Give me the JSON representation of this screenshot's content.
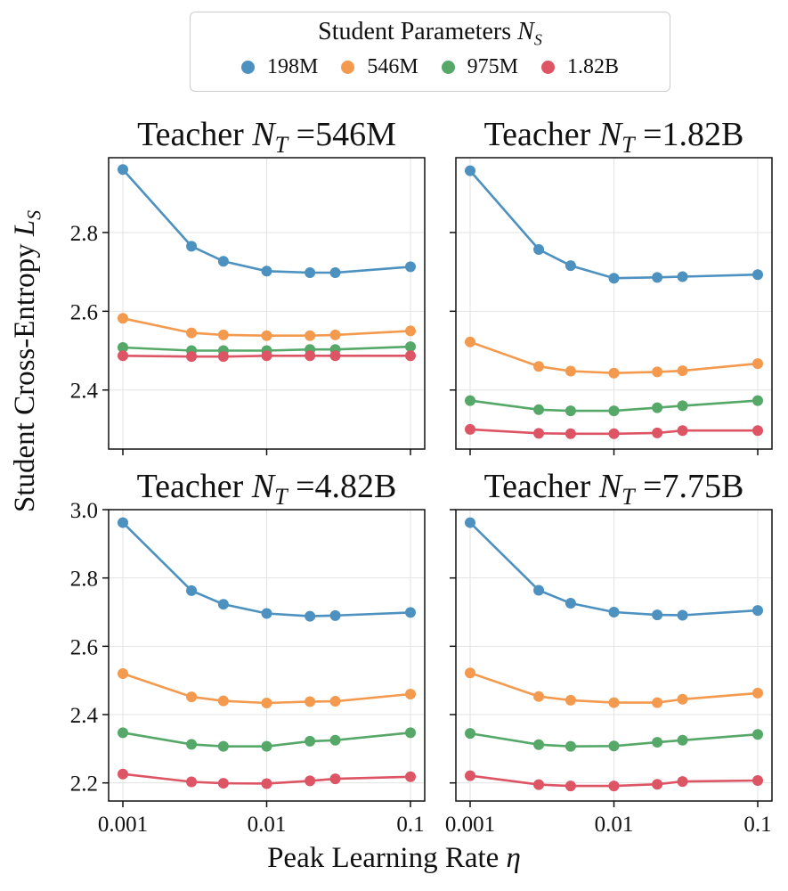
{
  "figure": {
    "legend_title": "Student Parameters",
    "legend_title_symbol": "N",
    "legend_title_sub": "S",
    "ylabel": "Student Cross-Entropy",
    "ylabel_symbol": "L",
    "ylabel_sub": "S",
    "xlabel": "Peak Learning Rate",
    "xlabel_symbol": "η",
    "title_prefix": "Teacher",
    "title_symbol": "N",
    "title_sub": "T",
    "title_eq": "="
  },
  "legend": [
    {
      "name": "198M",
      "color": "#4c91bf"
    },
    {
      "name": "546M",
      "color": "#f39a4f"
    },
    {
      "name": "975M",
      "color": "#55a868"
    },
    {
      "name": "1.82B",
      "color": "#dd5465"
    }
  ],
  "chart_data": [
    {
      "type": "line",
      "title": "Teacher N_T =546M",
      "teacher_size": "546M",
      "x": [
        0.001,
        0.003,
        0.005,
        0.01,
        0.02,
        0.03,
        0.1
      ],
      "xscale": "log",
      "xticks": [
        "0.001",
        "0.01",
        "0.1"
      ],
      "ylim": [
        2.25,
        2.99
      ],
      "yticks": [
        "2.4",
        "2.6",
        "2.8"
      ],
      "show_yticklabels": true,
      "series": [
        {
          "name": "198M",
          "values": [
            2.96,
            2.765,
            2.727,
            2.702,
            2.698,
            2.698,
            2.713
          ]
        },
        {
          "name": "546M",
          "values": [
            2.582,
            2.545,
            2.54,
            2.538,
            2.538,
            2.54,
            2.55
          ]
        },
        {
          "name": "975M",
          "values": [
            2.508,
            2.5,
            2.5,
            2.5,
            2.503,
            2.503,
            2.51
          ]
        },
        {
          "name": "1.82B",
          "values": [
            2.487,
            2.485,
            2.485,
            2.487,
            2.487,
            2.487,
            2.487
          ]
        }
      ]
    },
    {
      "type": "line",
      "title": "Teacher N_T =1.82B",
      "teacher_size": "1.82B",
      "x": [
        0.001,
        0.003,
        0.005,
        0.01,
        0.02,
        0.03,
        0.1
      ],
      "xscale": "log",
      "xticks": [
        "0.001",
        "0.01",
        "0.1"
      ],
      "ylim": [
        2.25,
        2.99
      ],
      "yticks": [
        "2.4",
        "2.6",
        "2.8"
      ],
      "show_yticklabels": false,
      "series": [
        {
          "name": "198M",
          "values": [
            2.957,
            2.757,
            2.716,
            2.684,
            2.686,
            2.688,
            2.693
          ]
        },
        {
          "name": "546M",
          "values": [
            2.522,
            2.46,
            2.448,
            2.443,
            2.446,
            2.449,
            2.467
          ]
        },
        {
          "name": "975M",
          "values": [
            2.373,
            2.35,
            2.347,
            2.347,
            2.355,
            2.36,
            2.373
          ]
        },
        {
          "name": "1.82B",
          "values": [
            2.3,
            2.29,
            2.289,
            2.289,
            2.291,
            2.297,
            2.297
          ]
        }
      ]
    },
    {
      "type": "line",
      "title": "Teacher N_T =4.82B",
      "teacher_size": "4.82B",
      "x": [
        0.001,
        0.003,
        0.005,
        0.01,
        0.02,
        0.03,
        0.1
      ],
      "xscale": "log",
      "xticks": [
        "0.001",
        "0.01",
        "0.1"
      ],
      "ylim": [
        2.147,
        3.0
      ],
      "yticks": [
        "2.2",
        "2.4",
        "2.6",
        "2.8",
        "3.0"
      ],
      "show_yticklabels": true,
      "series": [
        {
          "name": "198M",
          "values": [
            2.962,
            2.763,
            2.723,
            2.696,
            2.688,
            2.69,
            2.699
          ]
        },
        {
          "name": "546M",
          "values": [
            2.52,
            2.452,
            2.44,
            2.434,
            2.438,
            2.439,
            2.46
          ]
        },
        {
          "name": "975M",
          "values": [
            2.347,
            2.313,
            2.307,
            2.307,
            2.322,
            2.325,
            2.347
          ]
        },
        {
          "name": "1.82B",
          "values": [
            2.226,
            2.203,
            2.199,
            2.198,
            2.206,
            2.212,
            2.218
          ]
        }
      ]
    },
    {
      "type": "line",
      "title": "Teacher N_T =7.75B",
      "teacher_size": "7.75B",
      "x": [
        0.001,
        0.003,
        0.005,
        0.01,
        0.02,
        0.03,
        0.1
      ],
      "xscale": "log",
      "xticks": [
        "0.001",
        "0.01",
        "0.1"
      ],
      "ylim": [
        2.147,
        3.0
      ],
      "yticks": [
        "2.2",
        "2.4",
        "2.6",
        "2.8",
        "3.0"
      ],
      "show_yticklabels": false,
      "series": [
        {
          "name": "198M",
          "values": [
            2.962,
            2.764,
            2.726,
            2.7,
            2.692,
            2.691,
            2.705
          ]
        },
        {
          "name": "546M",
          "values": [
            2.522,
            2.453,
            2.442,
            2.435,
            2.435,
            2.445,
            2.463
          ]
        },
        {
          "name": "975M",
          "values": [
            2.345,
            2.312,
            2.307,
            2.308,
            2.319,
            2.325,
            2.342
          ]
        },
        {
          "name": "1.82B",
          "values": [
            2.221,
            2.195,
            2.191,
            2.191,
            2.196,
            2.204,
            2.207
          ]
        }
      ]
    }
  ]
}
